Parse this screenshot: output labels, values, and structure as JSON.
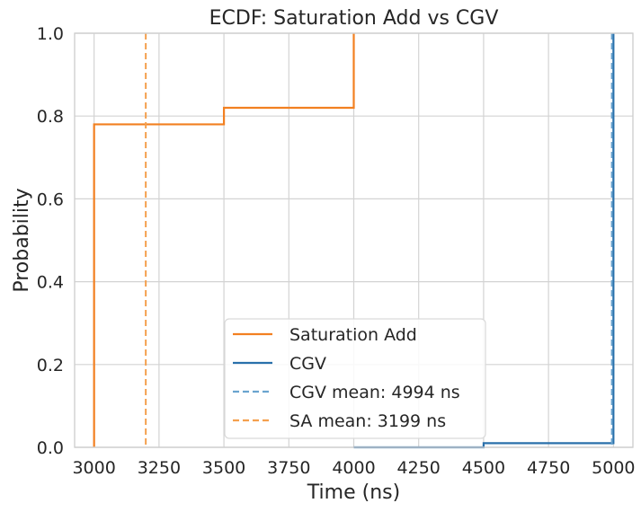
{
  "chart_data": {
    "type": "line",
    "title": "ECDF: Saturation Add vs CGV",
    "xlabel": "Time (ns)",
    "ylabel": "Probability",
    "xlim": [
      2925,
      5075
    ],
    "ylim": [
      0,
      1
    ],
    "xticks": [
      3000,
      3250,
      3500,
      3750,
      4000,
      4250,
      4500,
      4750,
      5000
    ],
    "yticks": [
      0.0,
      0.2,
      0.4,
      0.6,
      0.8,
      1.0
    ],
    "xtick_labels": [
      "3000",
      "3250",
      "3500",
      "3750",
      "4000",
      "4250",
      "4500",
      "4750",
      "5000"
    ],
    "ytick_labels": [
      "0.0",
      "0.2",
      "0.4",
      "0.6",
      "0.8",
      "1.0"
    ],
    "grid": true,
    "legend_position": "lower-center",
    "series": [
      {
        "name": "Saturation Add",
        "kind": "ecdf-step",
        "color": "#f28021",
        "points": [
          [
            3000,
            0.0
          ],
          [
            3000,
            0.78
          ],
          [
            3500,
            0.78
          ],
          [
            3500,
            0.82
          ],
          [
            4000,
            0.82
          ],
          [
            4000,
            1.0
          ]
        ]
      },
      {
        "name": "CGV",
        "kind": "ecdf-step",
        "color": "#2a70ab",
        "points": [
          [
            4000,
            0.0
          ],
          [
            4500,
            0.0
          ],
          [
            4500,
            0.01
          ],
          [
            5000,
            0.01
          ],
          [
            5000,
            1.0
          ]
        ]
      }
    ],
    "reference_lines": [
      {
        "name": "CGV mean: 4994 ns",
        "x": 4994,
        "color": "#6aa4cf",
        "style": "dashed"
      },
      {
        "name": "SA mean: 3199 ns",
        "x": 3199,
        "color": "#f4a04e",
        "style": "dashed"
      }
    ],
    "legend": [
      {
        "label": "Saturation Add",
        "color": "#f28021",
        "style": "solid"
      },
      {
        "label": "CGV",
        "color": "#2a70ab",
        "style": "solid"
      },
      {
        "label": "CGV mean: 4994 ns",
        "color": "#6aa4cf",
        "style": "dashed"
      },
      {
        "label": "SA mean: 3199 ns",
        "color": "#f4a04e",
        "style": "dashed"
      }
    ]
  }
}
